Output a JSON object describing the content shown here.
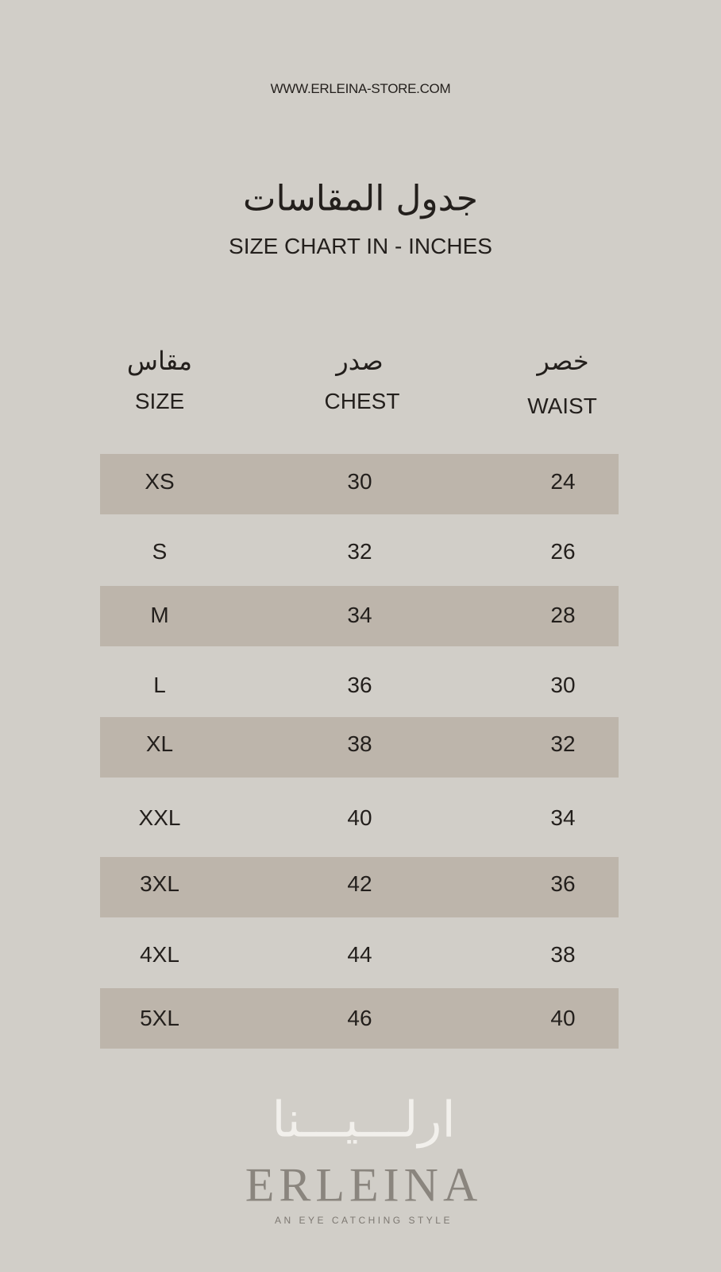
{
  "website": "WWW.ERLEINA-STORE.COM",
  "title_ar": "جدول المقاسات",
  "title_en": "SIZE CHART IN - INCHES",
  "columns": [
    {
      "ar": "مقاس",
      "en": "SIZE"
    },
    {
      "ar": "صدر",
      "en": "CHEST"
    },
    {
      "ar": "خصر",
      "en": "WAIST"
    }
  ],
  "rows": [
    [
      "XS",
      "30",
      "24"
    ],
    [
      "S",
      "32",
      "26"
    ],
    [
      "M",
      "34",
      "28"
    ],
    [
      "L",
      "36",
      "30"
    ],
    [
      "XL",
      "38",
      "32"
    ],
    [
      "XXL",
      "40",
      "34"
    ],
    [
      "3XL",
      "42",
      "36"
    ],
    [
      "4XL",
      "44",
      "38"
    ],
    [
      "5XL",
      "46",
      "40"
    ]
  ],
  "logo": {
    "ar": "ارلـــيـــنا",
    "en": "ERLEINA",
    "tagline": "AN EYE CATCHING STYLE"
  },
  "colors": {
    "background": "#d1cec8",
    "stripe": "#bdb5ab",
    "text": "#231f1c"
  }
}
